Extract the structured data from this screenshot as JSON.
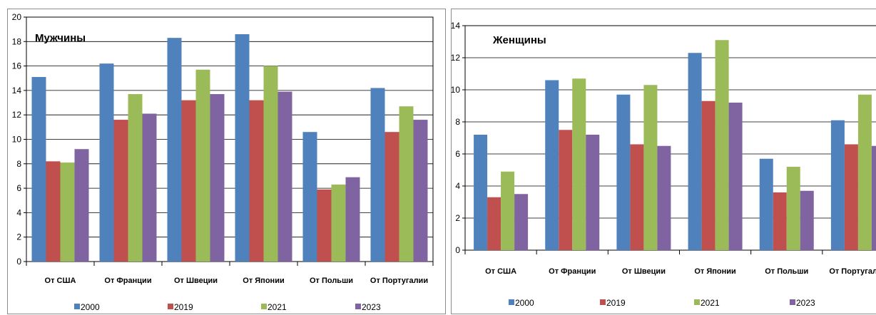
{
  "chart_data": [
    {
      "type": "bar",
      "title": "Мужчины",
      "categories": [
        "От США",
        "От Франции",
        "От Швеции",
        "От Японии",
        "От Польши",
        "От Португалии"
      ],
      "series": [
        {
          "name": "2000",
          "color": "#4f81bd",
          "values": [
            15.1,
            16.2,
            18.3,
            18.6,
            10.6,
            14.2
          ]
        },
        {
          "name": "2019",
          "color": "#c0504d",
          "values": [
            8.2,
            11.6,
            13.2,
            13.2,
            5.9,
            10.6
          ]
        },
        {
          "name": "2021",
          "color": "#9bbb59",
          "values": [
            8.1,
            13.7,
            15.7,
            16.0,
            6.3,
            12.7
          ]
        },
        {
          "name": "2023",
          "color": "#8064a2",
          "values": [
            9.2,
            12.1,
            13.7,
            13.9,
            6.9,
            11.6
          ]
        }
      ],
      "ylim": [
        0,
        20
      ],
      "yticks": [
        0,
        2,
        4,
        6,
        8,
        10,
        12,
        14,
        16,
        18,
        20
      ],
      "grid": true,
      "legend": "bottom"
    },
    {
      "type": "bar",
      "title": "Женщины",
      "categories": [
        "От США",
        "От Франции",
        "От Швеции",
        "От Японии",
        "От Польши",
        "От Португалии"
      ],
      "series": [
        {
          "name": "2000",
          "color": "#4f81bd",
          "values": [
            7.2,
            10.6,
            9.7,
            12.3,
            5.7,
            8.1
          ]
        },
        {
          "name": "2019",
          "color": "#c0504d",
          "values": [
            3.3,
            7.5,
            6.6,
            9.3,
            3.6,
            6.6
          ]
        },
        {
          "name": "2021",
          "color": "#9bbb59",
          "values": [
            4.9,
            10.7,
            10.3,
            13.1,
            5.2,
            9.7
          ]
        },
        {
          "name": "2023",
          "color": "#8064a2",
          "values": [
            3.5,
            7.2,
            6.5,
            9.2,
            3.7,
            6.5
          ]
        }
      ],
      "ylim": [
        0,
        14
      ],
      "yticks": [
        0,
        2,
        4,
        6,
        8,
        10,
        12,
        14
      ],
      "grid": true,
      "legend": "bottom"
    }
  ]
}
